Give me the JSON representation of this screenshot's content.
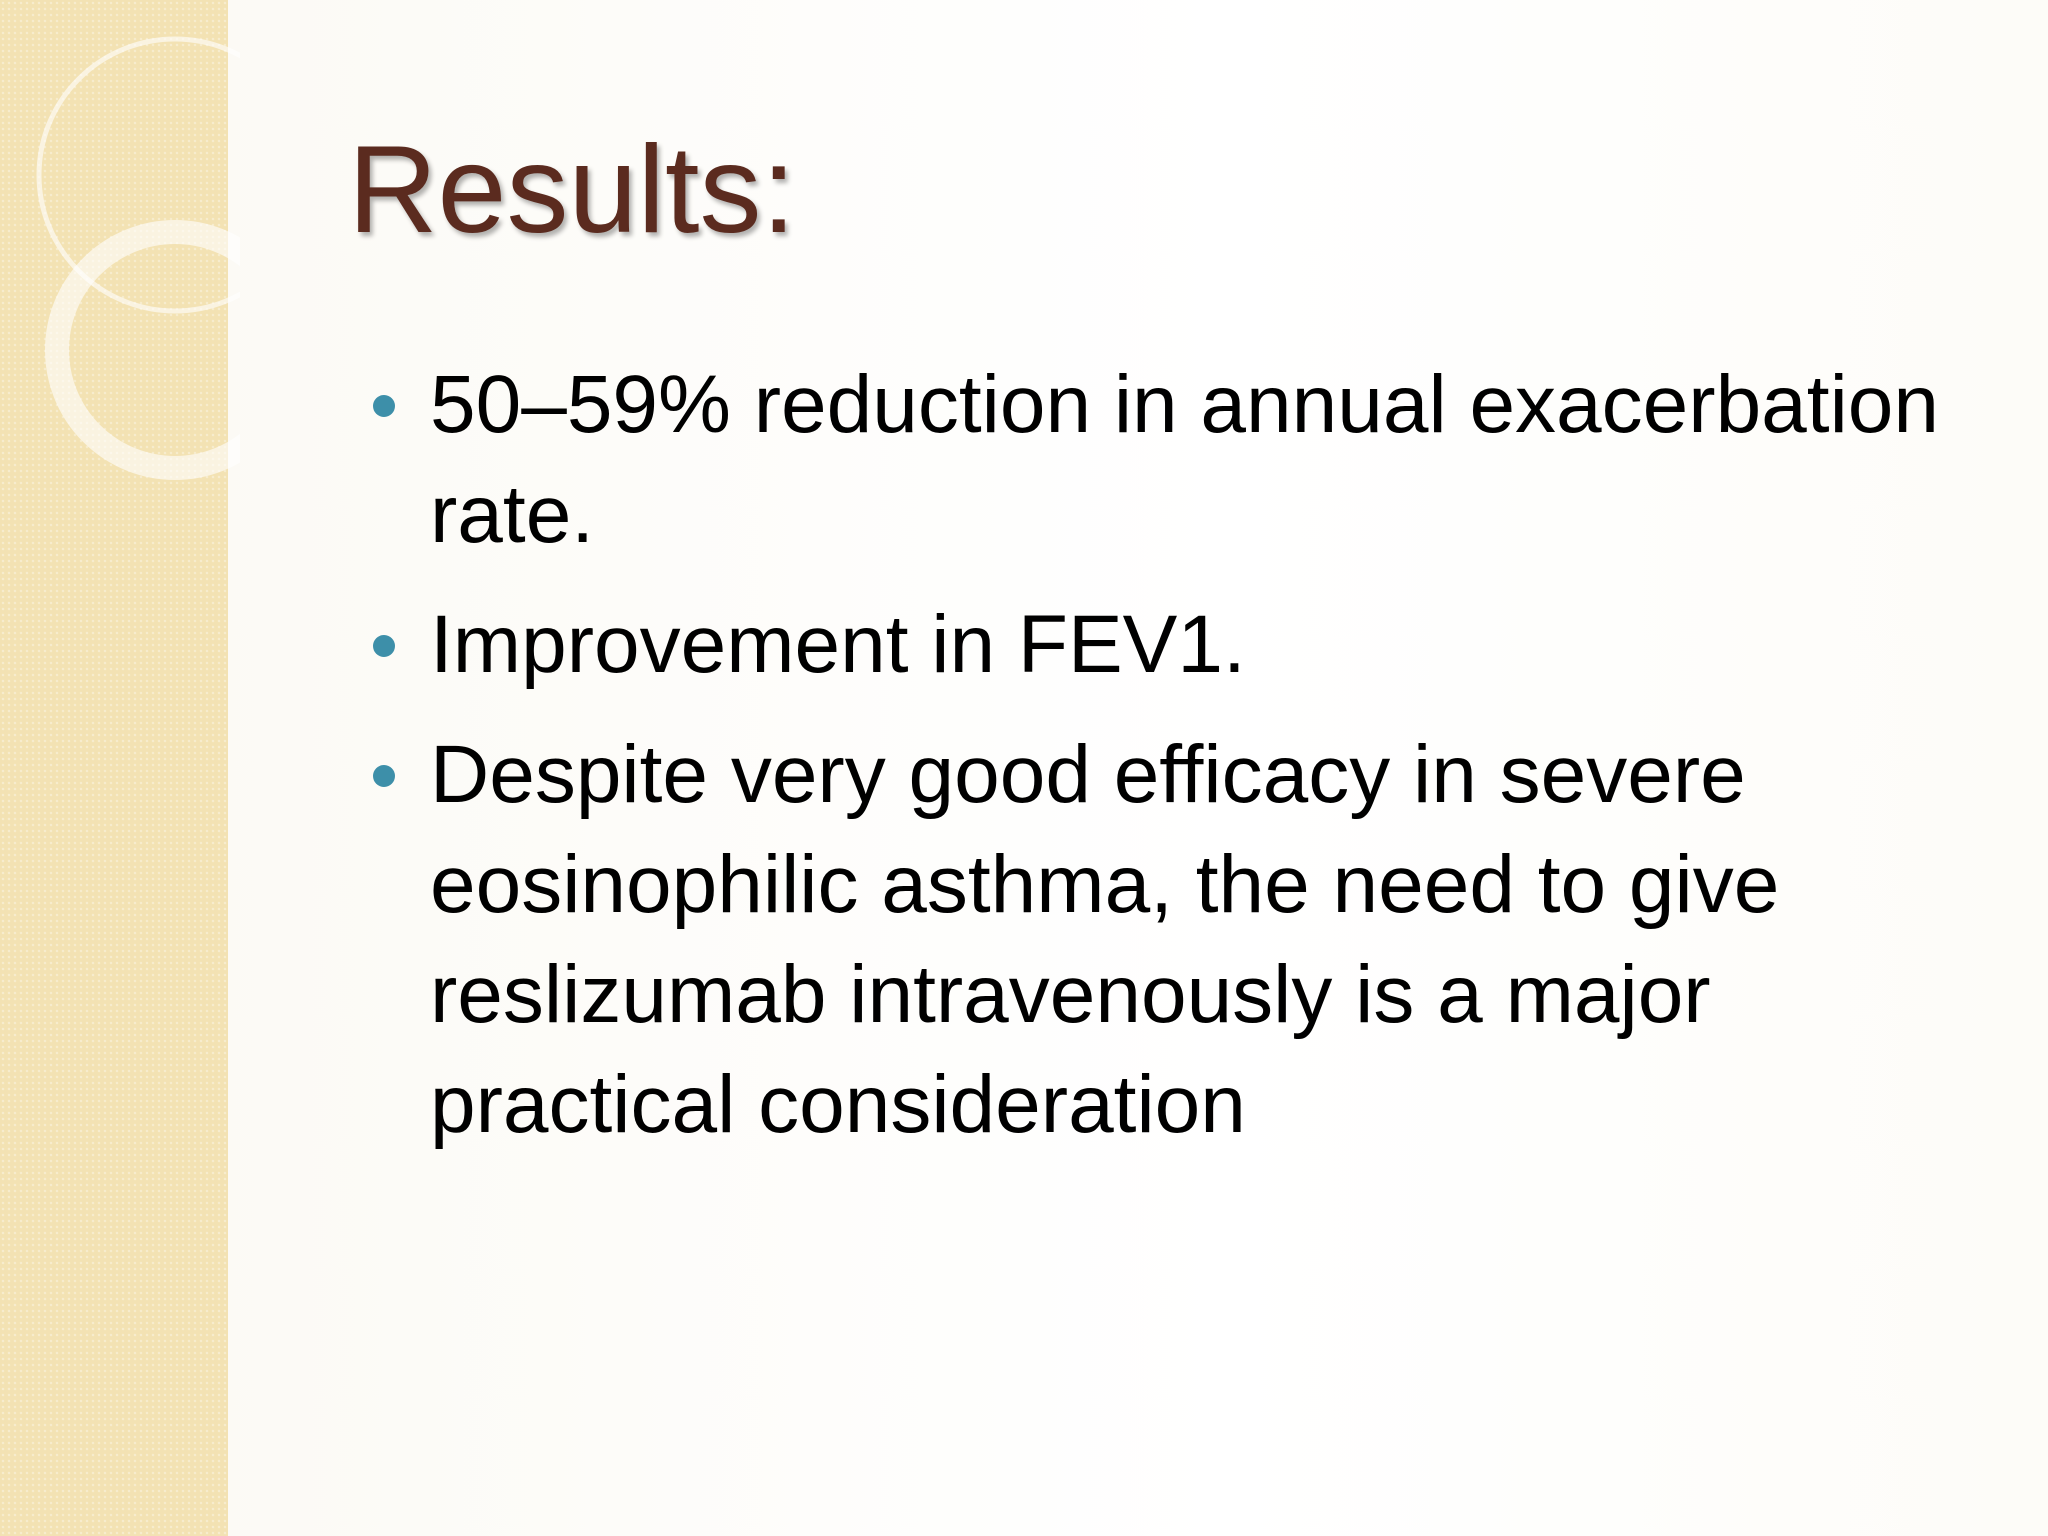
{
  "title": "Results:",
  "bullets": [
    "50–59% reduction in annual exacerbation rate.",
    "Improvement in FEV1.",
    "Despite very good efficacy in severe eosinophilic asthma, the need to give reslizumab intravenously is a major practical consideration"
  ]
}
